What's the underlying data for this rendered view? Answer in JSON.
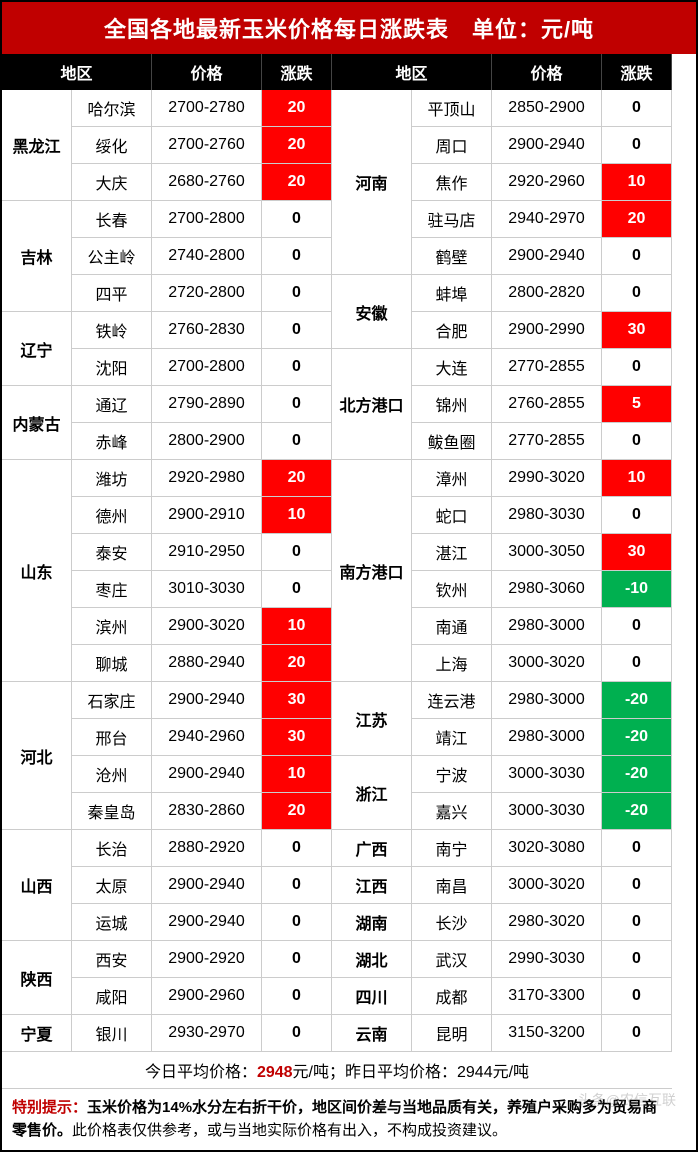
{
  "title": "全国各地最新玉米价格每日涨跌表　单位：元/吨",
  "headers": {
    "region": "地区",
    "price": "价格",
    "change": "涨跌"
  },
  "left": [
    {
      "prov": "黑龙江",
      "span": 3,
      "rows": [
        {
          "city": "哈尔滨",
          "price": "2700-2780",
          "chg": 20
        },
        {
          "city": "绥化",
          "price": "2700-2760",
          "chg": 20
        },
        {
          "city": "大庆",
          "price": "2680-2760",
          "chg": 20
        }
      ]
    },
    {
      "prov": "吉林",
      "span": 3,
      "rows": [
        {
          "city": "长春",
          "price": "2700-2800",
          "chg": 0
        },
        {
          "city": "公主岭",
          "price": "2740-2800",
          "chg": 0
        },
        {
          "city": "四平",
          "price": "2720-2800",
          "chg": 0
        }
      ]
    },
    {
      "prov": "辽宁",
      "span": 2,
      "rows": [
        {
          "city": "铁岭",
          "price": "2760-2830",
          "chg": 0
        },
        {
          "city": "沈阳",
          "price": "2700-2800",
          "chg": 0
        }
      ]
    },
    {
      "prov": "内蒙古",
      "span": 2,
      "rows": [
        {
          "city": "通辽",
          "price": "2790-2890",
          "chg": 0
        },
        {
          "city": "赤峰",
          "price": "2800-2900",
          "chg": 0
        }
      ]
    },
    {
      "prov": "山东",
      "span": 6,
      "rows": [
        {
          "city": "潍坊",
          "price": "2920-2980",
          "chg": 20
        },
        {
          "city": "德州",
          "price": "2900-2910",
          "chg": 10
        },
        {
          "city": "泰安",
          "price": "2910-2950",
          "chg": 0
        },
        {
          "city": "枣庄",
          "price": "3010-3030",
          "chg": 0
        },
        {
          "city": "滨州",
          "price": "2900-3020",
          "chg": 10
        },
        {
          "city": "聊城",
          "price": "2880-2940",
          "chg": 20
        }
      ]
    },
    {
      "prov": "河北",
      "span": 4,
      "rows": [
        {
          "city": "石家庄",
          "price": "2900-2940",
          "chg": 30
        },
        {
          "city": "邢台",
          "price": "2940-2960",
          "chg": 30
        },
        {
          "city": "沧州",
          "price": "2900-2940",
          "chg": 10
        },
        {
          "city": "秦皇岛",
          "price": "2830-2860",
          "chg": 20
        }
      ]
    },
    {
      "prov": "山西",
      "span": 3,
      "rows": [
        {
          "city": "长治",
          "price": "2880-2920",
          "chg": 0
        },
        {
          "city": "太原",
          "price": "2900-2940",
          "chg": 0
        },
        {
          "city": "运城",
          "price": "2900-2940",
          "chg": 0
        }
      ]
    },
    {
      "prov": "陕西",
      "span": 2,
      "rows": [
        {
          "city": "西安",
          "price": "2900-2920",
          "chg": 0
        },
        {
          "city": "咸阳",
          "price": "2900-2960",
          "chg": 0
        }
      ]
    },
    {
      "prov": "宁夏",
      "span": 1,
      "rows": [
        {
          "city": "银川",
          "price": "2930-2970",
          "chg": 0
        }
      ]
    }
  ],
  "right": [
    {
      "prov": "河南",
      "span": 5,
      "rows": [
        {
          "city": "平顶山",
          "price": "2850-2900",
          "chg": 0
        },
        {
          "city": "周口",
          "price": "2900-2940",
          "chg": 0
        },
        {
          "city": "焦作",
          "price": "2920-2960",
          "chg": 10
        },
        {
          "city": "驻马店",
          "price": "2940-2970",
          "chg": 20
        },
        {
          "city": "鹤壁",
          "price": "2900-2940",
          "chg": 0
        }
      ]
    },
    {
      "prov": "安徽",
      "span": 2,
      "rows": [
        {
          "city": "蚌埠",
          "price": "2800-2820",
          "chg": 0
        },
        {
          "city": "合肥",
          "price": "2900-2990",
          "chg": 30
        }
      ]
    },
    {
      "prov": "北方港口",
      "span": 3,
      "rows": [
        {
          "city": "大连",
          "price": "2770-2855",
          "chg": 0
        },
        {
          "city": "锦州",
          "price": "2760-2855",
          "chg": 5
        },
        {
          "city": "鲅鱼圈",
          "price": "2770-2855",
          "chg": 0
        }
      ]
    },
    {
      "prov": "南方港口",
      "span": 6,
      "rows": [
        {
          "city": "漳州",
          "price": "2990-3020",
          "chg": 10
        },
        {
          "city": "蛇口",
          "price": "2980-3030",
          "chg": 0
        },
        {
          "city": "湛江",
          "price": "3000-3050",
          "chg": 30
        },
        {
          "city": "钦州",
          "price": "2980-3060",
          "chg": -10
        },
        {
          "city": "南通",
          "price": "2980-3000",
          "chg": 0
        },
        {
          "city": "上海",
          "price": "3000-3020",
          "chg": 0
        }
      ]
    },
    {
      "prov": "江苏",
      "span": 2,
      "rows": [
        {
          "city": "连云港",
          "price": "2980-3000",
          "chg": -20
        },
        {
          "city": "靖江",
          "price": "2980-3000",
          "chg": -20
        }
      ]
    },
    {
      "prov": "浙江",
      "span": 2,
      "rows": [
        {
          "city": "宁波",
          "price": "3000-3030",
          "chg": -20
        },
        {
          "city": "嘉兴",
          "price": "3000-3030",
          "chg": -20
        }
      ]
    },
    {
      "prov": "广西",
      "span": 1,
      "rows": [
        {
          "city": "南宁",
          "price": "3020-3080",
          "chg": 0
        }
      ]
    },
    {
      "prov": "江西",
      "span": 1,
      "rows": [
        {
          "city": "南昌",
          "price": "3000-3020",
          "chg": 0
        }
      ]
    },
    {
      "prov": "湖南",
      "span": 1,
      "rows": [
        {
          "city": "长沙",
          "price": "2980-3020",
          "chg": 0
        }
      ]
    },
    {
      "prov": "湖北",
      "span": 1,
      "rows": [
        {
          "city": "武汉",
          "price": "2990-3030",
          "chg": 0
        }
      ]
    },
    {
      "prov": "四川",
      "span": 1,
      "rows": [
        {
          "city": "成都",
          "price": "3170-3300",
          "chg": 0
        }
      ]
    },
    {
      "prov": "云南",
      "span": 1,
      "rows": [
        {
          "city": "昆明",
          "price": "3150-3200",
          "chg": 0
        }
      ]
    }
  ],
  "avg_today_label": "今日平均价格：",
  "avg_today": "2948",
  "avg_unit": "元/吨",
  "avg_yest_label": "；昨日平均价格：",
  "avg_yest": "2944元/吨",
  "disclaimer_label": "特别提示：",
  "disclaimer_bold": "玉米价格为14%水分左右折干价，地区间价差与当地品质有关，养殖户采购多为贸易商零售价。",
  "disclaimer_rest": "此价格表仅供参考，或与当地实际价格有出入，不构成投资建议。",
  "watermark": "头条@农信互联"
}
